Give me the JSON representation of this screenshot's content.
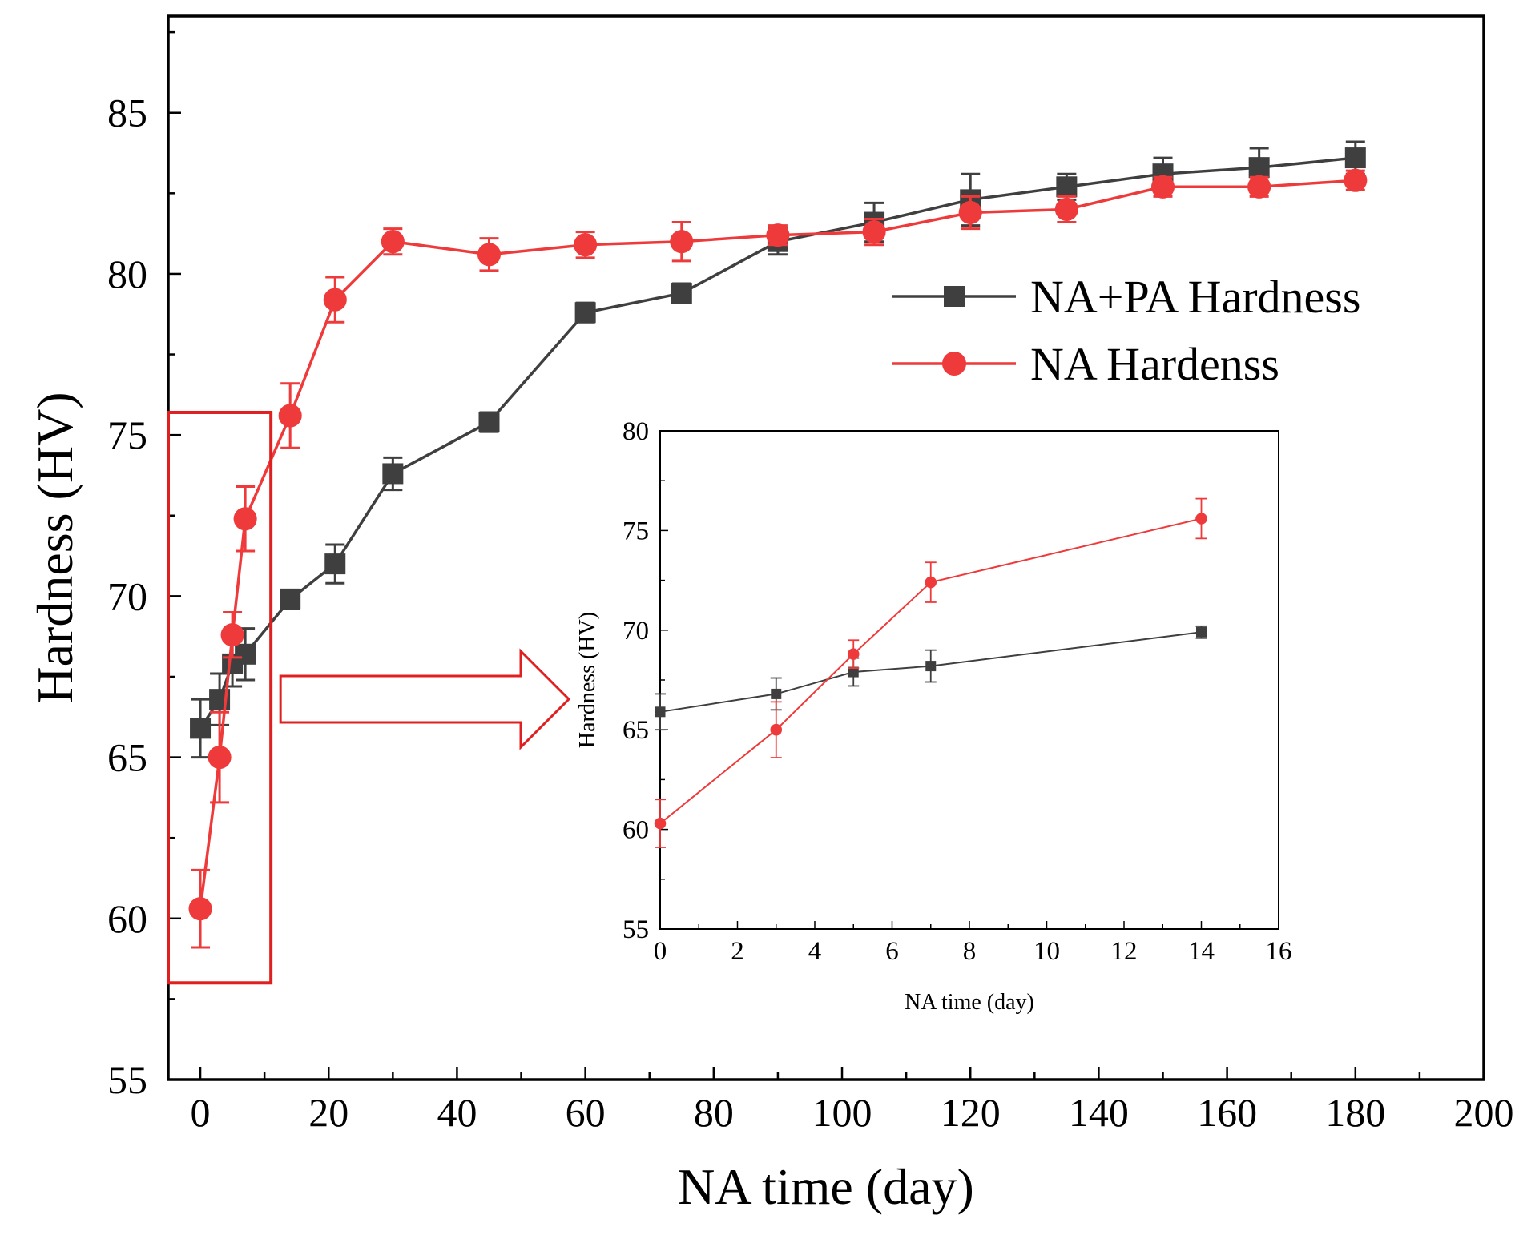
{
  "chart_data": [
    {
      "type": "line",
      "xlabel": "NA time (day)",
      "ylabel": "Hardness (HV)",
      "xlim": [
        -5,
        200
      ],
      "ylim": [
        55,
        88
      ],
      "xticks": [
        0,
        20,
        40,
        60,
        80,
        100,
        120,
        140,
        160,
        180,
        200
      ],
      "yticks": [
        55,
        60,
        65,
        70,
        75,
        80,
        85
      ],
      "legend_position": "right",
      "series": [
        {
          "name": "NA+PA Hardness",
          "marker": "square",
          "color": "#3f3f3f",
          "x": [
            0,
            3,
            5,
            7,
            14,
            21,
            30,
            45,
            60,
            75,
            90,
            105,
            120,
            135,
            150,
            165,
            180
          ],
          "y": [
            65.9,
            66.8,
            67.9,
            68.2,
            69.9,
            71.0,
            73.8,
            75.4,
            78.8,
            79.4,
            81.0,
            81.6,
            82.3,
            82.7,
            83.1,
            83.3,
            83.6
          ],
          "err": [
            0.9,
            0.8,
            0.7,
            0.8,
            0.3,
            0.6,
            0.5,
            0.3,
            0.3,
            0.3,
            0.4,
            0.6,
            0.8,
            0.4,
            0.5,
            0.6,
            0.5
          ]
        },
        {
          "name": "NA Hardenss",
          "marker": "circle",
          "color": "#ee3a3a",
          "x": [
            0,
            3,
            5,
            7,
            14,
            21,
            30,
            45,
            60,
            75,
            90,
            105,
            120,
            135,
            150,
            165,
            180
          ],
          "y": [
            60.3,
            65.0,
            68.8,
            72.4,
            75.6,
            79.2,
            81.0,
            80.6,
            80.9,
            81.0,
            81.2,
            81.3,
            81.9,
            82.0,
            82.7,
            82.7,
            82.9
          ],
          "err": [
            1.2,
            1.4,
            0.7,
            1.0,
            1.0,
            0.7,
            0.4,
            0.5,
            0.4,
            0.6,
            0.3,
            0.4,
            0.5,
            0.4,
            0.3,
            0.3,
            0.3
          ]
        }
      ]
    },
    {
      "type": "line",
      "inset": true,
      "xlabel": "NA time (day)",
      "ylabel": "Hardness (HV)",
      "xlim": [
        0,
        16
      ],
      "ylim": [
        55,
        80
      ],
      "xticks": [
        0,
        2,
        4,
        6,
        8,
        10,
        12,
        14,
        16
      ],
      "yticks": [
        55,
        60,
        65,
        70,
        75,
        80
      ],
      "series": [
        {
          "marker": "square",
          "color": "#3f3f3f",
          "x": [
            0,
            3,
            5,
            7,
            14
          ],
          "y": [
            65.9,
            66.8,
            67.9,
            68.2,
            69.9
          ],
          "err": [
            0.9,
            0.8,
            0.7,
            0.8,
            0.3
          ]
        },
        {
          "marker": "circle",
          "color": "#ee3a3a",
          "x": [
            0,
            3,
            5,
            7,
            14
          ],
          "y": [
            60.3,
            65.0,
            68.8,
            72.4,
            75.6
          ],
          "err": [
            1.2,
            1.4,
            0.7,
            1.0,
            1.0
          ]
        }
      ]
    }
  ],
  "annotation": {
    "highlight_x_range": [
      -5,
      11
    ],
    "highlight_y_range": [
      58,
      75.7
    ],
    "highlight_color": "#e02020"
  }
}
